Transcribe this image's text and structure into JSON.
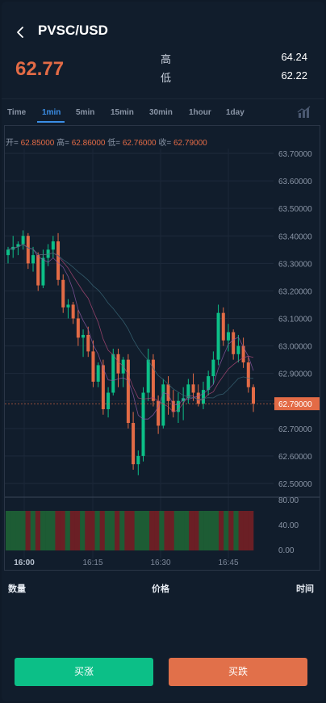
{
  "header": {
    "pair": "PVSC/USD"
  },
  "ticker": {
    "last_price": "62.77",
    "high_label": "高",
    "high_value": "64.24",
    "low_label": "低",
    "low_value": "62.22"
  },
  "timeframes": [
    "Time",
    "1min",
    "5min",
    "15min",
    "30min",
    "1hour",
    "1day"
  ],
  "active_timeframe": "1min",
  "ohlc": {
    "open_label": "开=",
    "open": "62.85000",
    "high_label": "高=",
    "high": "62.86000",
    "low_label": "低=",
    "low": "62.76000",
    "close_label": "收=",
    "close": "62.79000"
  },
  "chart_data": {
    "type": "candlestick",
    "y_ticks": [
      "63.70000",
      "63.60000",
      "63.50000",
      "63.40000",
      "63.30000",
      "63.20000",
      "63.10000",
      "63.00000",
      "62.90000",
      "62.80000",
      "62.70000",
      "62.60000",
      "62.50000"
    ],
    "current_price_label": "62.79000",
    "current_price": 62.79,
    "volume_ticks": [
      "80.00",
      "40.00",
      "0.00"
    ],
    "x_ticks": [
      "16:00",
      "16:15",
      "16:30",
      "16:45"
    ],
    "candles": [
      [
        63.33,
        63.36,
        63.3,
        63.35
      ],
      [
        63.35,
        63.4,
        63.32,
        63.36
      ],
      [
        63.36,
        63.38,
        63.33,
        63.37
      ],
      [
        63.37,
        63.42,
        63.35,
        63.4
      ],
      [
        63.4,
        63.41,
        63.28,
        63.3
      ],
      [
        63.3,
        63.36,
        63.27,
        63.33
      ],
      [
        63.33,
        63.34,
        63.2,
        63.22
      ],
      [
        63.22,
        63.35,
        63.21,
        63.32
      ],
      [
        63.32,
        63.37,
        63.29,
        63.35
      ],
      [
        63.35,
        63.4,
        63.32,
        63.38
      ],
      [
        63.38,
        63.41,
        63.22,
        63.24
      ],
      [
        63.24,
        63.26,
        63.12,
        63.14
      ],
      [
        63.14,
        63.17,
        63.1,
        63.15
      ],
      [
        63.15,
        63.16,
        63.08,
        63.1
      ],
      [
        63.1,
        63.13,
        63.0,
        63.03
      ],
      [
        63.03,
        63.06,
        62.96,
        63.04
      ],
      [
        63.04,
        63.07,
        62.96,
        62.98
      ],
      [
        62.98,
        63.02,
        62.85,
        62.87
      ],
      [
        62.87,
        62.94,
        62.85,
        62.93
      ],
      [
        62.93,
        62.95,
        62.75,
        62.77
      ],
      [
        62.77,
        62.85,
        62.74,
        62.83
      ],
      [
        62.83,
        62.99,
        62.82,
        62.97
      ],
      [
        62.97,
        62.99,
        62.85,
        62.9
      ],
      [
        62.9,
        62.96,
        62.85,
        62.95
      ],
      [
        62.95,
        62.97,
        62.7,
        62.72
      ],
      [
        62.72,
        62.76,
        62.55,
        62.57
      ],
      [
        62.57,
        62.62,
        62.53,
        62.6
      ],
      [
        62.6,
        62.85,
        62.58,
        62.83
      ],
      [
        62.83,
        62.99,
        62.8,
        62.95
      ],
      [
        62.95,
        62.97,
        62.78,
        62.8
      ],
      [
        62.8,
        62.82,
        62.68,
        62.71
      ],
      [
        62.71,
        62.88,
        62.7,
        62.86
      ],
      [
        62.86,
        62.89,
        62.75,
        62.8
      ],
      [
        62.8,
        62.84,
        62.74,
        62.76
      ],
      [
        62.76,
        62.83,
        62.72,
        62.8
      ],
      [
        62.8,
        62.85,
        62.73,
        62.81
      ],
      [
        62.81,
        62.88,
        62.79,
        62.86
      ],
      [
        62.86,
        62.9,
        62.8,
        62.83
      ],
      [
        62.83,
        62.86,
        62.78,
        62.79
      ],
      [
        62.79,
        62.87,
        62.77,
        62.84
      ],
      [
        62.84,
        62.91,
        62.82,
        62.89
      ],
      [
        62.89,
        62.98,
        62.86,
        62.95
      ],
      [
        62.95,
        63.15,
        62.93,
        63.12
      ],
      [
        63.12,
        63.14,
        63.0,
        63.02
      ],
      [
        63.02,
        63.08,
        62.98,
        63.05
      ],
      [
        63.05,
        63.06,
        62.95,
        62.97
      ],
      [
        62.97,
        63.04,
        62.94,
        63.0
      ],
      [
        63.0,
        63.03,
        62.92,
        62.94
      ],
      [
        62.94,
        62.96,
        62.83,
        62.85
      ],
      [
        62.85,
        62.86,
        62.76,
        62.79
      ]
    ],
    "volume_bars": 50
  },
  "order_list": {
    "col_qty": "数量",
    "col_price": "价格",
    "col_time": "时间"
  },
  "actions": {
    "buy_label": "买涨",
    "sell_label": "买跌"
  },
  "colors": {
    "up": "#0cbf87",
    "down": "#e36b46",
    "accent": "#3b8ee6",
    "bg": "#111d2c"
  }
}
